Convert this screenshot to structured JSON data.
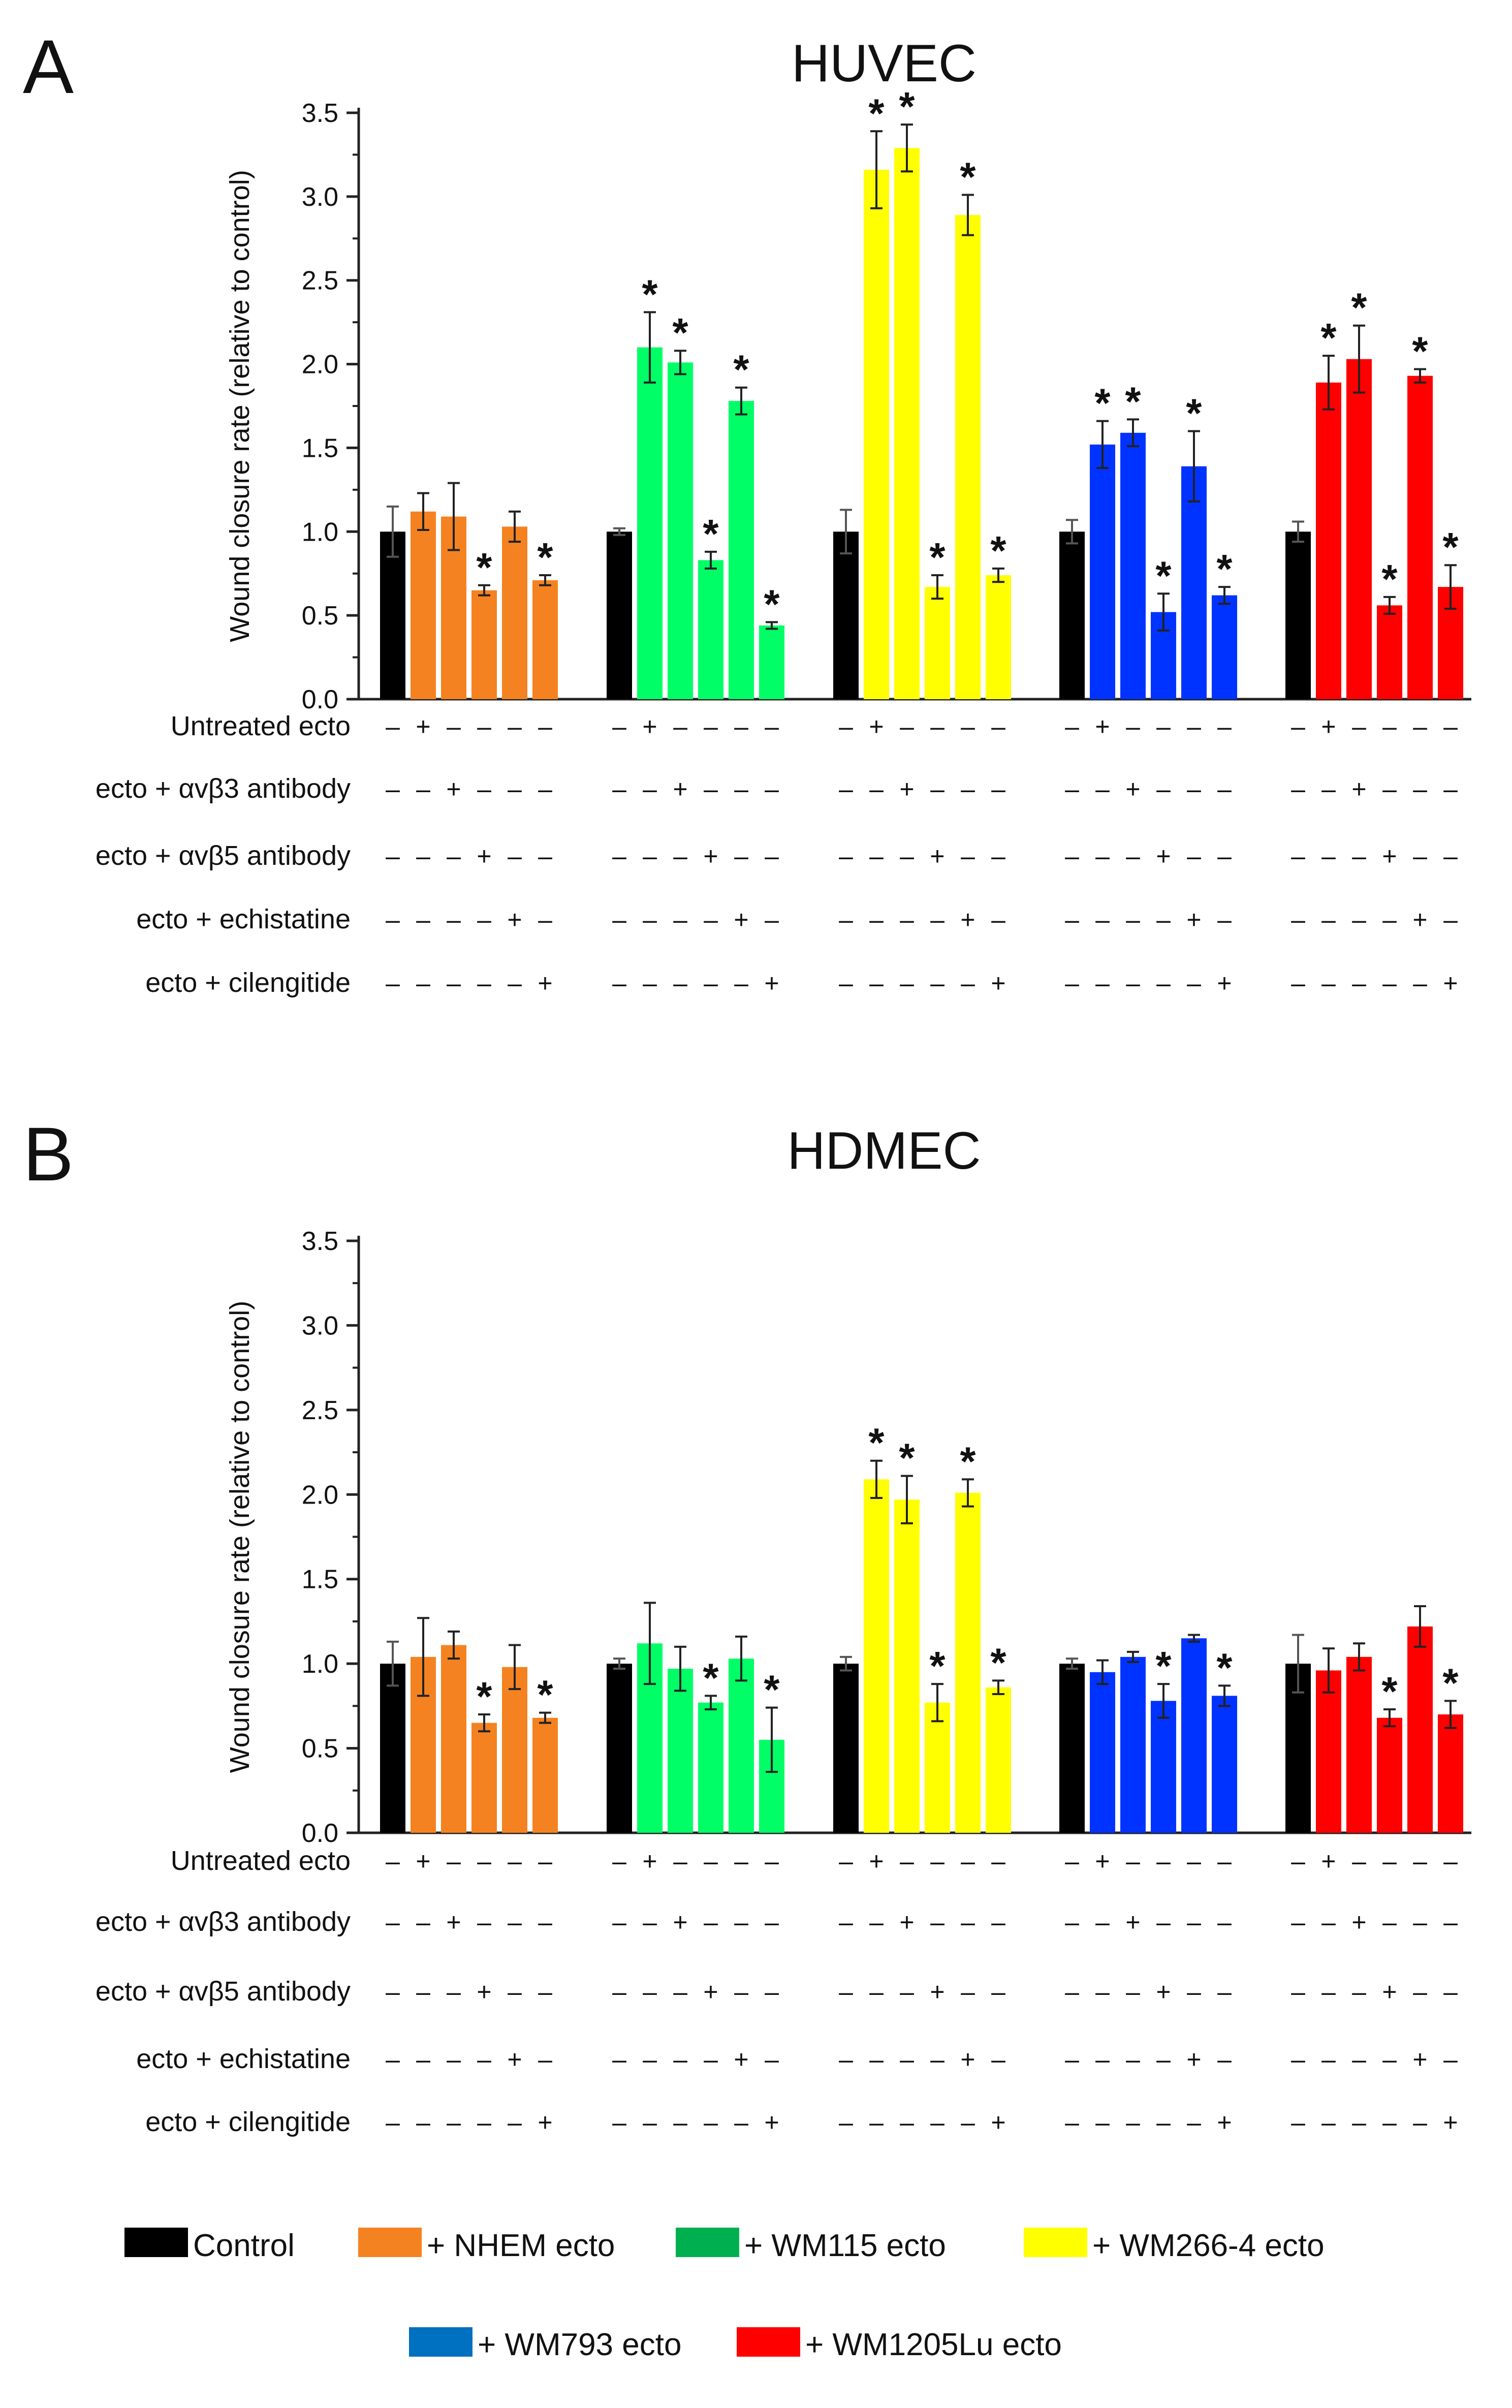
{
  "legend": [
    {
      "label": "Control",
      "color": "#000000"
    },
    {
      "label": "+ NHEM ecto",
      "color": "#f58220"
    },
    {
      "label": "+ WM115 ecto",
      "color": "#00b050"
    },
    {
      "label": "+ WM266-4 ecto",
      "color": "#ffff00"
    },
    {
      "label": "+ WM793 ecto",
      "color": "#0070c0"
    },
    {
      "label": "+ WM1205Lu ecto",
      "color": "#ff0000"
    }
  ],
  "treatment_rows": [
    "Untreated ecto",
    "ecto + αvβ3 antibody",
    "ecto + αvβ5 antibody",
    "ecto + echistatine",
    "ecto + cilengitide"
  ],
  "treatment_patterns": [
    [
      "–",
      "+",
      "–",
      "–",
      "–",
      "–"
    ],
    [
      "–",
      "–",
      "+",
      "–",
      "–",
      "–"
    ],
    [
      "–",
      "–",
      "–",
      "+",
      "–",
      "–"
    ],
    [
      "–",
      "–",
      "–",
      "–",
      "+",
      "–"
    ],
    [
      "–",
      "–",
      "–",
      "–",
      "–",
      "+"
    ]
  ],
  "chart_data": [
    {
      "panel": "A",
      "type": "bar",
      "title": "HUVEC",
      "ylabel": "Wound closure rate (relative to control)",
      "ylim": [
        0,
        3.5
      ],
      "yticks": [
        "0.0",
        "0.5",
        "1.0",
        "1.5",
        "2.0",
        "2.5",
        "3.0",
        "3.5"
      ],
      "significance_marker": "*",
      "groups": [
        {
          "name": "+ NHEM ecto",
          "color": "#f58220",
          "values": [
            1.0,
            1.12,
            1.09,
            0.65,
            1.03,
            0.71
          ],
          "errors": [
            0.15,
            0.11,
            0.2,
            0.03,
            0.09,
            0.03
          ],
          "significant": [
            false,
            false,
            false,
            true,
            false,
            true
          ]
        },
        {
          "name": "+ WM115 ecto",
          "color": "#00ff66",
          "values": [
            1.0,
            2.1,
            2.01,
            0.83,
            1.78,
            0.44
          ],
          "errors": [
            0.02,
            0.21,
            0.07,
            0.05,
            0.08,
            0.02
          ],
          "significant": [
            false,
            true,
            true,
            true,
            true,
            true
          ]
        },
        {
          "name": "+ WM266-4 ecto",
          "color": "#ffff00",
          "values": [
            1.0,
            3.16,
            3.29,
            0.67,
            2.89,
            0.74
          ],
          "errors": [
            0.13,
            0.23,
            0.14,
            0.07,
            0.12,
            0.04
          ],
          "significant": [
            false,
            true,
            true,
            true,
            true,
            true
          ]
        },
        {
          "name": "+ WM793 ecto",
          "color": "#0033ff",
          "values": [
            1.0,
            1.52,
            1.59,
            0.52,
            1.39,
            0.62
          ],
          "errors": [
            0.07,
            0.14,
            0.08,
            0.11,
            0.21,
            0.05
          ],
          "significant": [
            false,
            true,
            true,
            true,
            true,
            true
          ]
        },
        {
          "name": "+ WM1205Lu ecto",
          "color": "#ff0000",
          "values": [
            1.0,
            1.89,
            2.03,
            0.56,
            1.93,
            0.67
          ],
          "errors": [
            0.06,
            0.16,
            0.2,
            0.05,
            0.04,
            0.13
          ],
          "significant": [
            false,
            true,
            true,
            true,
            true,
            true
          ]
        }
      ]
    },
    {
      "panel": "B",
      "type": "bar",
      "title": "HDMEC",
      "ylabel": "Wound closure rate (relative to control)",
      "ylim": [
        0,
        3.5
      ],
      "yticks": [
        "0.0",
        "0.5",
        "1.0",
        "1.5",
        "2.0",
        "2.5",
        "3.0",
        "3.5"
      ],
      "significance_marker": "*",
      "groups": [
        {
          "name": "+ NHEM ecto",
          "color": "#f58220",
          "values": [
            1.0,
            1.04,
            1.11,
            0.65,
            0.98,
            0.68
          ],
          "errors": [
            0.13,
            0.23,
            0.08,
            0.05,
            0.13,
            0.03
          ],
          "significant": [
            false,
            false,
            false,
            true,
            false,
            true
          ]
        },
        {
          "name": "+ WM115 ecto",
          "color": "#00ff66",
          "values": [
            1.0,
            1.12,
            0.97,
            0.77,
            1.03,
            0.55
          ],
          "errors": [
            0.03,
            0.24,
            0.13,
            0.04,
            0.13,
            0.19
          ],
          "significant": [
            false,
            false,
            false,
            true,
            false,
            true
          ]
        },
        {
          "name": "+ WM266-4 ecto",
          "color": "#ffff00",
          "values": [
            1.0,
            2.09,
            1.97,
            0.77,
            2.01,
            0.86
          ],
          "errors": [
            0.04,
            0.11,
            0.14,
            0.11,
            0.08,
            0.04
          ],
          "significant": [
            false,
            true,
            true,
            true,
            true,
            true
          ]
        },
        {
          "name": "+ WM793 ecto",
          "color": "#0033ff",
          "values": [
            1.0,
            0.95,
            1.04,
            0.78,
            1.15,
            0.81
          ],
          "errors": [
            0.03,
            0.07,
            0.03,
            0.1,
            0.02,
            0.06
          ],
          "significant": [
            false,
            false,
            false,
            true,
            false,
            true
          ]
        },
        {
          "name": "+ WM1205Lu ecto",
          "color": "#ff0000",
          "values": [
            1.0,
            0.96,
            1.04,
            0.68,
            1.22,
            0.7
          ],
          "errors": [
            0.17,
            0.13,
            0.08,
            0.05,
            0.12,
            0.08
          ],
          "significant": [
            false,
            false,
            false,
            true,
            false,
            true
          ]
        }
      ]
    }
  ]
}
